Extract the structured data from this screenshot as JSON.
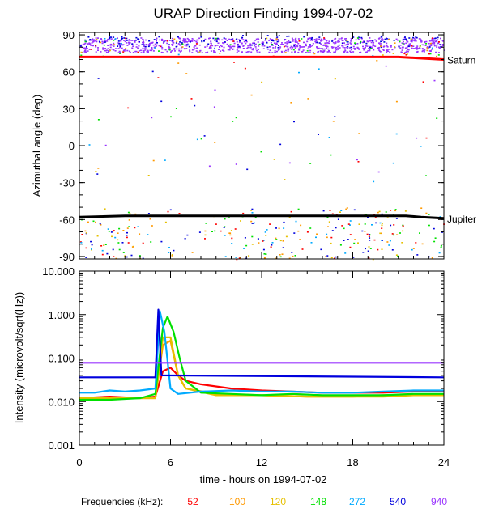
{
  "chart_data": [
    {
      "type": "scatter",
      "panel": "direction",
      "title": "URAP Direction Finding  1994-07-02",
      "ylabel": "Azimuthal angle (deg)",
      "xlim": [
        0,
        24
      ],
      "ylim": [
        -92,
        92
      ],
      "yticks": [
        {
          "v": 90,
          "label": "90"
        },
        {
          "v": 60,
          "label": "60"
        },
        {
          "v": 30,
          "label": "30"
        },
        {
          "v": 0,
          "label": "0"
        },
        {
          "v": -30,
          "label": "-30"
        },
        {
          "v": -60,
          "label": "-60"
        },
        {
          "v": -90,
          "label": "-90"
        }
      ],
      "reference_lines": [
        {
          "name": "Saturn",
          "color": "#ff0000",
          "points": [
            [
              0,
              72
            ],
            [
              12,
              72
            ],
            [
              21,
              72
            ],
            [
              24,
              70
            ]
          ]
        },
        {
          "name": "Jupiter",
          "color": "#000000",
          "points": [
            [
              0,
              -58
            ],
            [
              3,
              -57
            ],
            [
              12,
              -57
            ],
            [
              18,
              -57
            ],
            [
              20,
              -57
            ],
            [
              21.5,
              -57
            ],
            [
              22.5,
              -58
            ],
            [
              24,
              -59
            ]
          ]
        }
      ],
      "series_note": "Dense 940 kHz cluster near +80 deg spanning 0-24 h; scattered points of all frequencies around -60 to -90 deg"
    },
    {
      "type": "line",
      "panel": "intensity",
      "ylabel": "Intensity (microvolt/sqrt(Hz))",
      "xlabel": "time - hours on 1994-07-02",
      "xlim": [
        0,
        24
      ],
      "ylim": [
        0.001,
        10
      ],
      "yscale": "log",
      "xticks": [
        {
          "v": 0,
          "label": "0"
        },
        {
          "v": 6,
          "label": "6"
        },
        {
          "v": 12,
          "label": "12"
        },
        {
          "v": 18,
          "label": "18"
        },
        {
          "v": 24,
          "label": "24"
        }
      ],
      "yticks": [
        {
          "v": 10,
          "label": "10.000"
        },
        {
          "v": 1,
          "label": "1.000"
        },
        {
          "v": 0.1,
          "label": "0.100"
        },
        {
          "v": 0.01,
          "label": "0.010"
        },
        {
          "v": 0.001,
          "label": "0.001"
        }
      ],
      "series": [
        {
          "name": "52",
          "color": "#ff0000",
          "points": [
            [
              0,
              0.012
            ],
            [
              2,
              0.013
            ],
            [
              4,
              0.012
            ],
            [
              5,
              0.013
            ],
            [
              5.5,
              0.05
            ],
            [
              6,
              0.06
            ],
            [
              6.5,
              0.04
            ],
            [
              7,
              0.03
            ],
            [
              8,
              0.025
            ],
            [
              10,
              0.02
            ],
            [
              12,
              0.018
            ],
            [
              14,
              0.017
            ],
            [
              16,
              0.016
            ],
            [
              18,
              0.016
            ],
            [
              20,
              0.016
            ],
            [
              22,
              0.017
            ],
            [
              24,
              0.017
            ]
          ]
        },
        {
          "name": "100",
          "color": "#ff9900",
          "points": [
            [
              0,
              0.012
            ],
            [
              3,
              0.012
            ],
            [
              5,
              0.012
            ],
            [
              5.5,
              0.2
            ],
            [
              6,
              0.25
            ],
            [
              6.5,
              0.04
            ],
            [
              7,
              0.02
            ],
            [
              9,
              0.015
            ],
            [
              12,
              0.014
            ],
            [
              15,
              0.013
            ],
            [
              18,
              0.013
            ],
            [
              20,
              0.014
            ],
            [
              22,
              0.014
            ],
            [
              24,
              0.014
            ]
          ]
        },
        {
          "name": "120",
          "color": "#e6c000",
          "points": [
            [
              0,
              0.012
            ],
            [
              3,
              0.012
            ],
            [
              5,
              0.012
            ],
            [
              5.5,
              0.3
            ],
            [
              6,
              0.3
            ],
            [
              6.5,
              0.04
            ],
            [
              7,
              0.02
            ],
            [
              9,
              0.014
            ],
            [
              12,
              0.014
            ],
            [
              15,
              0.013
            ],
            [
              18,
              0.013
            ],
            [
              20,
              0.013
            ],
            [
              22,
              0.014
            ],
            [
              24,
              0.014
            ]
          ]
        },
        {
          "name": "148",
          "color": "#00e000",
          "points": [
            [
              0,
              0.011
            ],
            [
              2,
              0.011
            ],
            [
              4,
              0.012
            ],
            [
              5,
              0.015
            ],
            [
              5.5,
              0.5
            ],
            [
              5.8,
              0.9
            ],
            [
              6.2,
              0.4
            ],
            [
              6.6,
              0.1
            ],
            [
              7,
              0.03
            ],
            [
              8,
              0.016
            ],
            [
              10,
              0.015
            ],
            [
              12,
              0.014
            ],
            [
              14,
              0.015
            ],
            [
              16,
              0.014
            ],
            [
              18,
              0.014
            ],
            [
              20,
              0.014
            ],
            [
              22,
              0.015
            ],
            [
              24,
              0.015
            ]
          ]
        },
        {
          "name": "272",
          "color": "#00aaff",
          "points": [
            [
              0,
              0.016
            ],
            [
              1,
              0.016
            ],
            [
              2,
              0.018
            ],
            [
              3,
              0.017
            ],
            [
              4,
              0.018
            ],
            [
              5,
              0.02
            ],
            [
              5.3,
              1.2
            ],
            [
              5.6,
              0.4
            ],
            [
              6,
              0.02
            ],
            [
              6.5,
              0.015
            ],
            [
              8,
              0.017
            ],
            [
              10,
              0.018
            ],
            [
              12,
              0.017
            ],
            [
              14,
              0.017
            ],
            [
              16,
              0.016
            ],
            [
              18,
              0.016
            ],
            [
              20,
              0.017
            ],
            [
              22,
              0.018
            ],
            [
              24,
              0.018
            ]
          ]
        },
        {
          "name": "540",
          "color": "#0000dd",
          "points": [
            [
              0,
              0.036
            ],
            [
              5,
              0.036
            ],
            [
              5.2,
              1.3
            ],
            [
              5.4,
              0.04
            ],
            [
              24,
              0.036
            ]
          ]
        },
        {
          "name": "940",
          "color": "#9933ff",
          "points": [
            [
              0,
              0.078
            ],
            [
              24,
              0.078
            ]
          ]
        }
      ]
    }
  ],
  "legend": {
    "label": "Frequencies (kHz):",
    "items": [
      {
        "name": "52",
        "color": "#ff0000"
      },
      {
        "name": "100",
        "color": "#ff9900"
      },
      {
        "name": "120",
        "color": "#e6c000"
      },
      {
        "name": "148",
        "color": "#00e000"
      },
      {
        "name": "272",
        "color": "#00aaff"
      },
      {
        "name": "540",
        "color": "#0000dd"
      },
      {
        "name": "940",
        "color": "#9933ff"
      }
    ]
  }
}
